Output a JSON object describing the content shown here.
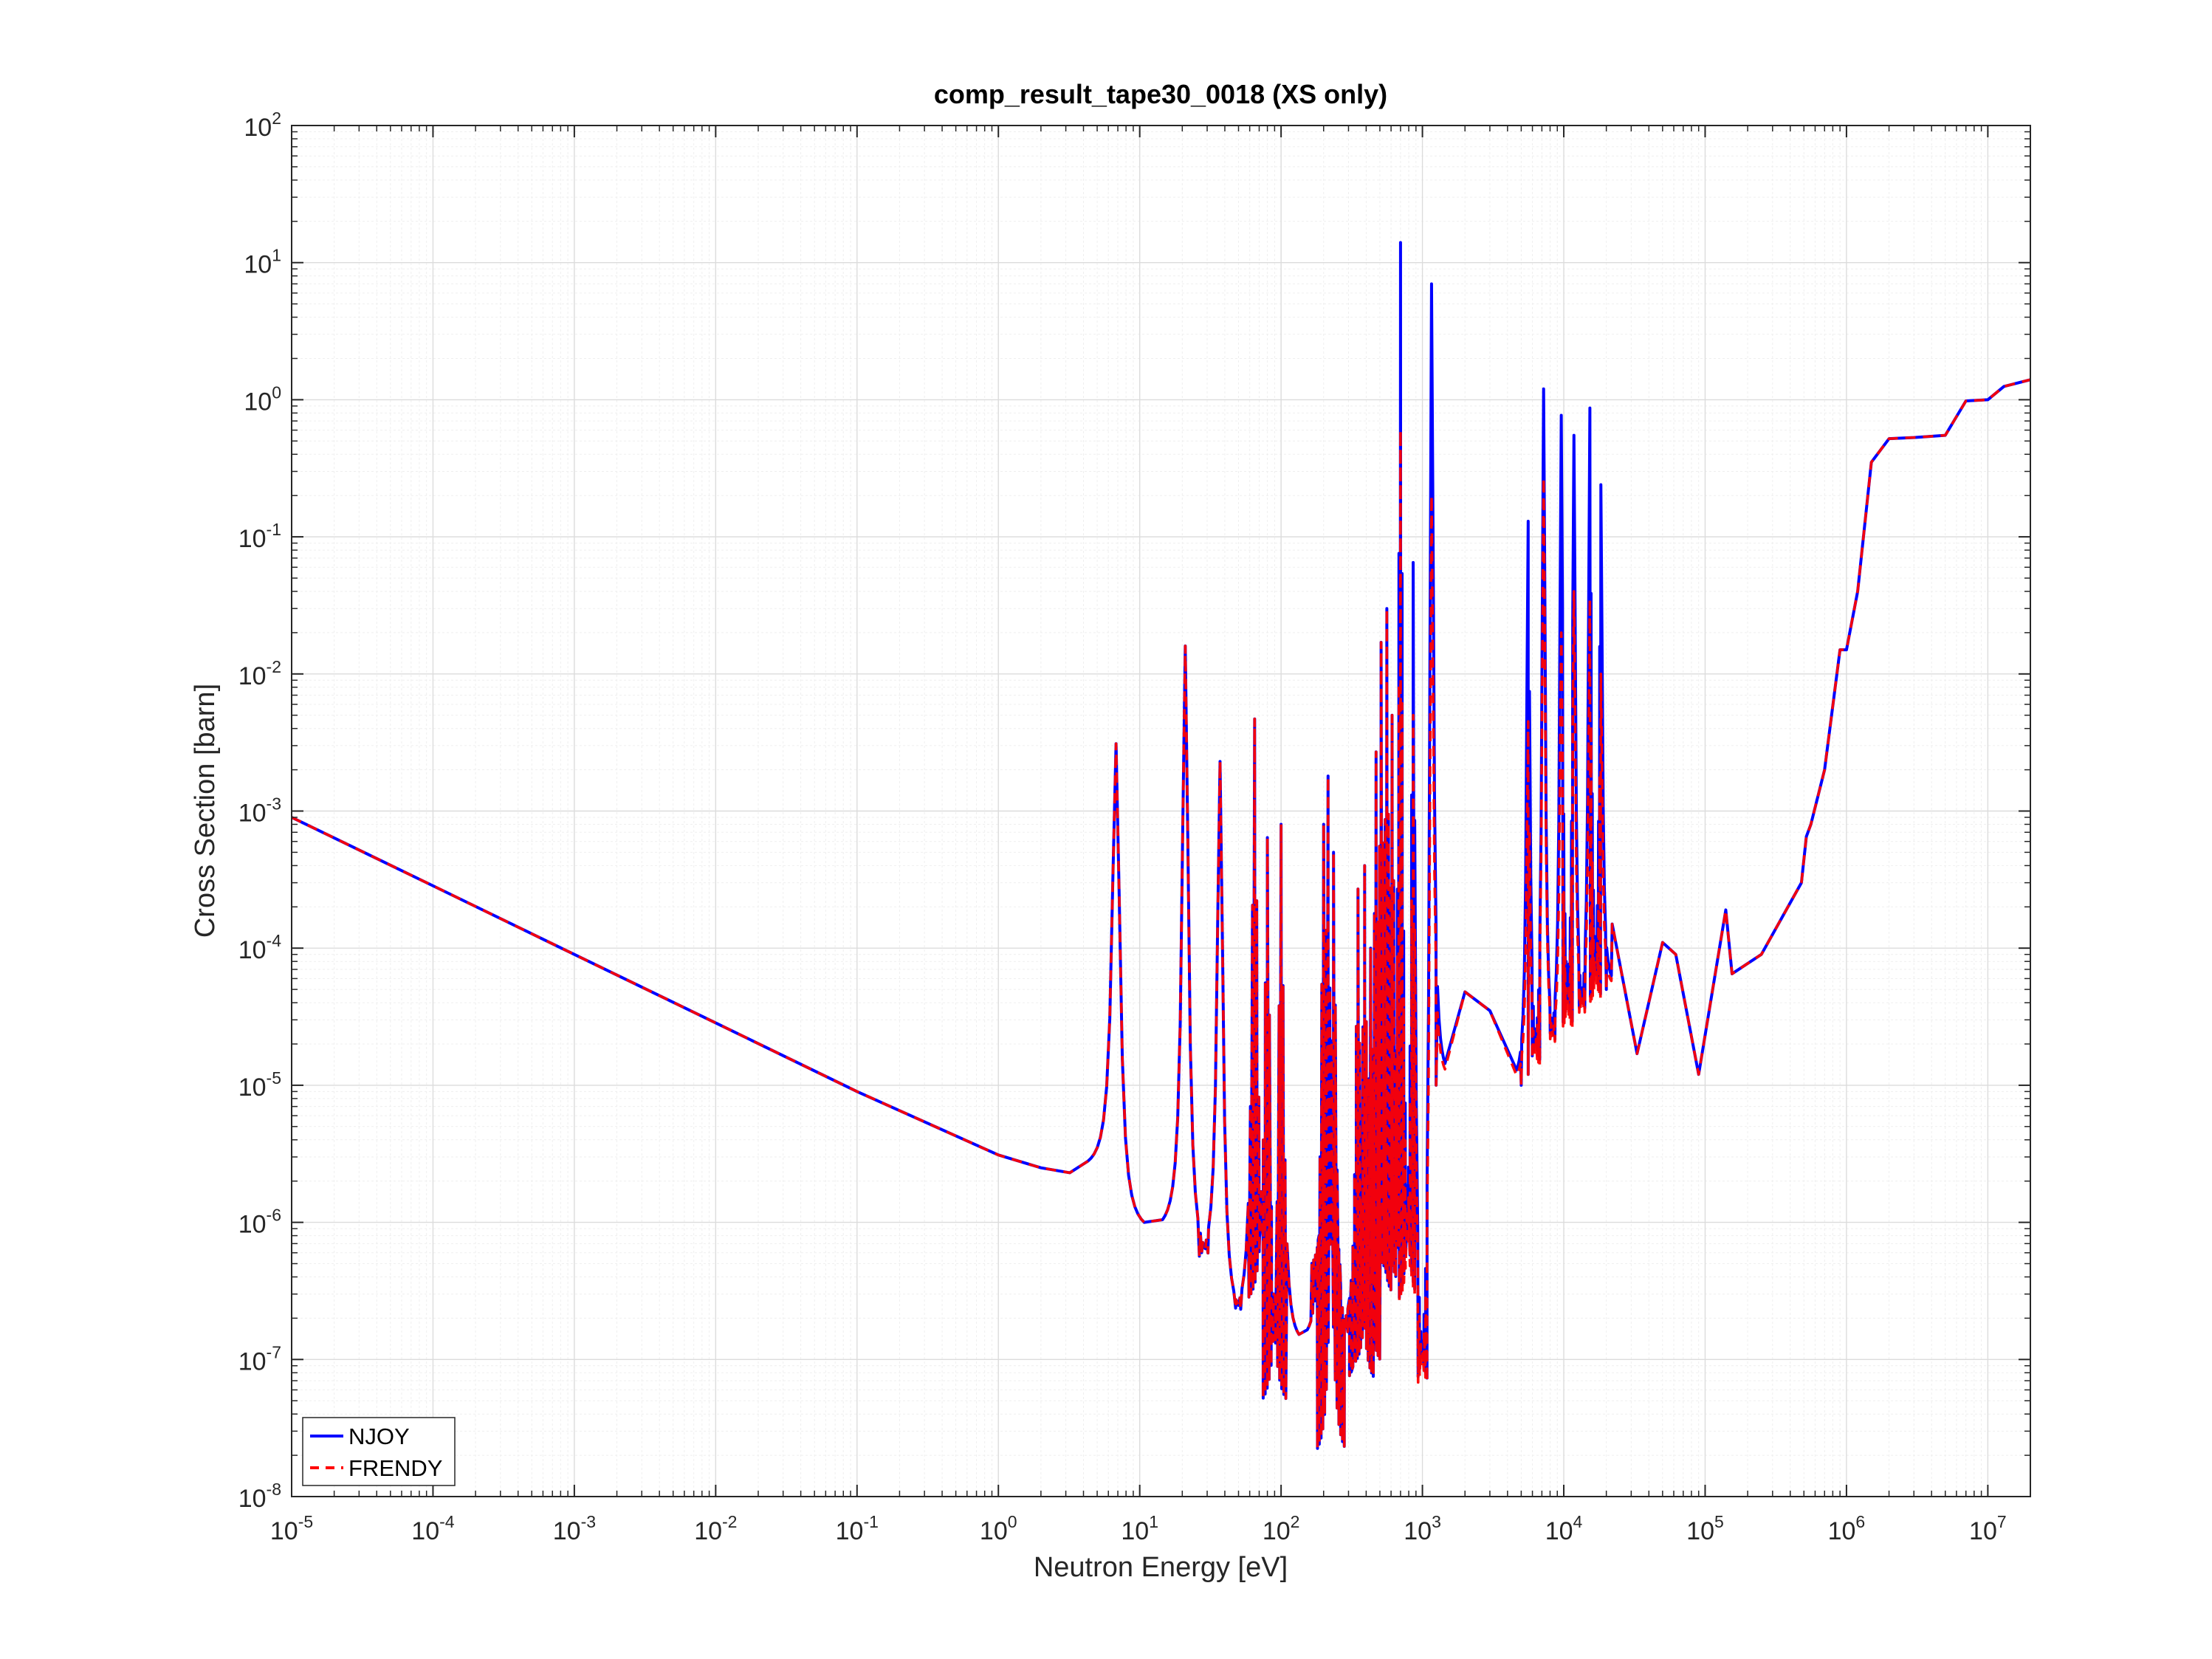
{
  "chart_data": {
    "type": "line",
    "title": "comp_result_tape30_0018 (XS only)",
    "xlabel": "Neutron Energy [eV]",
    "ylabel": "Cross Section [barn]",
    "xscale": "log",
    "yscale": "log",
    "xlim": [
      1e-05,
      20000000.0
    ],
    "ylim": [
      1e-08,
      100
    ],
    "x_ticks": [
      {
        "base": "10",
        "exp": "-5"
      },
      {
        "base": "10",
        "exp": "-4"
      },
      {
        "base": "10",
        "exp": "-3"
      },
      {
        "base": "10",
        "exp": "-2"
      },
      {
        "base": "10",
        "exp": "-1"
      },
      {
        "base": "10",
        "exp": "0"
      },
      {
        "base": "10",
        "exp": "1"
      },
      {
        "base": "10",
        "exp": "2"
      },
      {
        "base": "10",
        "exp": "3"
      },
      {
        "base": "10",
        "exp": "4"
      },
      {
        "base": "10",
        "exp": "5"
      },
      {
        "base": "10",
        "exp": "6"
      },
      {
        "base": "10",
        "exp": "7"
      }
    ],
    "y_ticks": [
      {
        "base": "10",
        "exp": "-8"
      },
      {
        "base": "10",
        "exp": "-7"
      },
      {
        "base": "10",
        "exp": "-6"
      },
      {
        "base": "10",
        "exp": "-5"
      },
      {
        "base": "10",
        "exp": "-4"
      },
      {
        "base": "10",
        "exp": "-3"
      },
      {
        "base": "10",
        "exp": "-2"
      },
      {
        "base": "10",
        "exp": "-1"
      },
      {
        "base": "10",
        "exp": "0"
      },
      {
        "base": "10",
        "exp": "1"
      },
      {
        "base": "10",
        "exp": "2"
      }
    ],
    "grid": true,
    "minor_grid": true,
    "legend_position": "bottom-left",
    "series": [
      {
        "name": "NJOY",
        "color": "#0000ff",
        "style": "solid",
        "background_1overv": {
          "x": [
            1e-05,
            0.0001,
            0.001,
            0.01,
            0.1,
            1.0,
            2.0,
            3.2
          ],
          "y": [
            0.0009,
            0.000285,
            9e-05,
            2.85e-05,
            9e-06,
            3.1e-06,
            2.5e-06,
            2.3e-06
          ]
        },
        "resolved_resonances": [
          {
            "e": 6.8,
            "peak": 0.0031,
            "left_min": 2.3e-06,
            "right_min": 8e-07
          },
          {
            "e": 21,
            "peak": 0.016,
            "left_min": 8e-07,
            "right_min": 4.5e-07
          },
          {
            "e": 37,
            "peak": 0.0023,
            "left_min": 4.5e-07,
            "right_min": 1.8e-07
          },
          {
            "e": 65,
            "peak": 0.0047,
            "left_min": 1.8e-07,
            "right_min": 2.3e-07
          },
          {
            "e": 80,
            "peak": 0.00064,
            "left_min": 2.3e-07,
            "right_min": 4e-08
          },
          {
            "e": 100,
            "peak": 0.0008,
            "left_min": 4e-08,
            "right_min": 1.2e-07
          },
          {
            "e": 200,
            "peak": 0.0008,
            "left_min": 1.3e-07,
            "right_min": 4e-07
          },
          {
            "e": 215,
            "peak": 0.0018,
            "left_min": 4e-07,
            "right_min": 1.7e-08
          },
          {
            "e": 235,
            "peak": 0.0005,
            "left_min": 1.7e-08,
            "right_min": 1.2e-07
          },
          {
            "e": 350,
            "peak": 0.00027,
            "left_min": 1.5e-07,
            "right_min": 6e-08
          },
          {
            "e": 390,
            "peak": 0.0004,
            "left_min": 6e-08,
            "right_min": 8e-08
          },
          {
            "e": 430,
            "peak": 0.0001,
            "left_min": 8e-08,
            "right_min": 4e-07
          },
          {
            "e": 470,
            "peak": 0.0027,
            "left_min": 4e-07,
            "right_min": 2.5e-07
          },
          {
            "e": 510,
            "peak": 0.017,
            "left_min": 2.5e-07,
            "right_min": 3e-07
          },
          {
            "e": 560,
            "peak": 0.03,
            "left_min": 3e-07,
            "right_min": 4e-07
          },
          {
            "e": 610,
            "peak": 0.005,
            "left_min": 4e-07,
            "right_min": 6e-07
          },
          {
            "e": 700,
            "peak": 14,
            "left_min": 6e-07,
            "right_min": 2e-07
          },
          {
            "e": 860,
            "peak": 0.065,
            "left_min": 2e-07,
            "right_min": 5e-08
          },
          {
            "e": 1160,
            "peak": 7,
            "left_min": 4.5e-08,
            "right_min": 1e-05
          },
          {
            "e": 5600,
            "peak": 0.13,
            "left_min": 1e-05,
            "right_min": 1.2e-05
          },
          {
            "e": 7200,
            "peak": 1.2,
            "left_min": 1.2e-05,
            "right_min": 1.6e-05
          },
          {
            "e": 9600,
            "peak": 0.77,
            "left_min": 1.8e-05,
            "right_min": 2.2e-05
          },
          {
            "e": 11800,
            "peak": 0.55,
            "left_min": 2.2e-05,
            "right_min": 2.8e-05
          },
          {
            "e": 15300,
            "peak": 0.87,
            "left_min": 2.8e-05,
            "right_min": 3.5e-05
          },
          {
            "e": 18300,
            "peak": 0.24,
            "left_min": 3.5e-05,
            "right_min": 5e-05
          }
        ],
        "smooth_region": {
          "x": [
            1250,
            2000,
            3000,
            5000,
            5600,
            20000,
            22000,
            33000,
            50000,
            62000,
            90000,
            140000,
            155000,
            250000,
            480000,
            520000,
            560000,
            700000,
            900000,
            1000000.0,
            1200000.0,
            1500000.0,
            2000000.0,
            3000000.0,
            5000000.0,
            7000000.0,
            10000000.0,
            13000000.0,
            20000000.0
          ],
          "y": [
            1e-05,
            4.8e-05,
            3.5e-05,
            1e-05,
            1.2e-05,
            5e-05,
            0.00015,
            1.7e-05,
            0.00011,
            9e-05,
            1.2e-05,
            0.00019,
            6.5e-05,
            9e-05,
            0.0003,
            0.00065,
            0.0008,
            0.002,
            0.015,
            0.015,
            0.04,
            0.35,
            0.52,
            0.53,
            0.55,
            0.98,
            1.0,
            1.25,
            1.4
          ]
        }
      },
      {
        "name": "FRENDY",
        "color": "#ff0000",
        "style": "dashed",
        "background_1overv": {
          "x": [
            1e-05,
            0.0001,
            0.001,
            0.01,
            0.1,
            1.0,
            2.0,
            3.2
          ],
          "y": [
            0.0009,
            0.000285,
            9e-05,
            2.85e-05,
            9e-06,
            3.1e-06,
            2.5e-06,
            2.3e-06
          ]
        },
        "resolved_resonances": [
          {
            "e": 6.8,
            "peak": 0.0031,
            "left_min": 2.3e-06,
            "right_min": 8e-07
          },
          {
            "e": 21,
            "peak": 0.016,
            "left_min": 8e-07,
            "right_min": 4.5e-07
          },
          {
            "e": 37,
            "peak": 0.0023,
            "left_min": 4.5e-07,
            "right_min": 1.8e-07
          },
          {
            "e": 65,
            "peak": 0.0047,
            "left_min": 1.8e-07,
            "right_min": 2.3e-07
          },
          {
            "e": 80,
            "peak": 0.00064,
            "left_min": 2.3e-07,
            "right_min": 4e-08
          },
          {
            "e": 100,
            "peak": 0.0008,
            "left_min": 4e-08,
            "right_min": 1.2e-07
          },
          {
            "e": 200,
            "peak": 0.0008,
            "left_min": 1.3e-07,
            "right_min": 4e-07
          },
          {
            "e": 215,
            "peak": 0.0018,
            "left_min": 4e-07,
            "right_min": 1.7e-08
          },
          {
            "e": 235,
            "peak": 0.0005,
            "left_min": 1.7e-08,
            "right_min": 1.2e-07
          },
          {
            "e": 350,
            "peak": 0.00027,
            "left_min": 1.5e-07,
            "right_min": 6e-08
          },
          {
            "e": 390,
            "peak": 0.0004,
            "left_min": 6e-08,
            "right_min": 8e-08
          },
          {
            "e": 430,
            "peak": 0.0001,
            "left_min": 8e-08,
            "right_min": 4e-07
          },
          {
            "e": 470,
            "peak": 0.0027,
            "left_min": 4e-07,
            "right_min": 2.5e-07
          },
          {
            "e": 510,
            "peak": 0.017,
            "left_min": 2.5e-07,
            "right_min": 3e-07
          },
          {
            "e": 560,
            "peak": 0.03,
            "left_min": 3e-07,
            "right_min": 4e-07
          },
          {
            "e": 610,
            "peak": 0.005,
            "left_min": 4e-07,
            "right_min": 6e-07
          },
          {
            "e": 700,
            "peak": 0.6,
            "left_min": 6e-07,
            "right_min": 2e-07
          },
          {
            "e": 860,
            "peak": 0.005,
            "left_min": 2e-07,
            "right_min": 5e-08
          },
          {
            "e": 1160,
            "peak": 0.2,
            "left_min": 4.5e-08,
            "right_min": 1e-05
          },
          {
            "e": 5600,
            "peak": 0.0045,
            "left_min": 1e-05,
            "right_min": 1.2e-05
          },
          {
            "e": 7200,
            "peak": 0.27,
            "left_min": 1.2e-05,
            "right_min": 1.6e-05
          },
          {
            "e": 9600,
            "peak": 0.02,
            "left_min": 1.8e-05,
            "right_min": 2.2e-05
          },
          {
            "e": 11800,
            "peak": 0.04,
            "left_min": 2.2e-05,
            "right_min": 2.8e-05
          },
          {
            "e": 15300,
            "peak": 0.035,
            "left_min": 2.8e-05,
            "right_min": 3.5e-05
          },
          {
            "e": 18300,
            "peak": 0.01,
            "left_min": 3.5e-05,
            "right_min": 5e-05
          }
        ],
        "smooth_region": {
          "x": [
            1250,
            2000,
            3000,
            5000,
            5600,
            20000,
            22000,
            33000,
            50000,
            62000,
            90000,
            140000,
            155000,
            250000,
            480000,
            520000,
            560000,
            700000,
            900000,
            1000000.0,
            1200000.0,
            1500000.0,
            2000000.0,
            3000000.0,
            5000000.0,
            7000000.0,
            10000000.0,
            13000000.0,
            20000000.0
          ],
          "y": [
            1e-05,
            4.8e-05,
            3.5e-05,
            1e-05,
            1.2e-05,
            5e-05,
            0.00015,
            1.7e-05,
            0.00011,
            9e-05,
            1.2e-05,
            0.00019,
            6.5e-05,
            9e-05,
            0.0003,
            0.00065,
            0.0008,
            0.002,
            0.015,
            0.015,
            0.04,
            0.35,
            0.52,
            0.53,
            0.55,
            0.98,
            1.0,
            1.25,
            1.4
          ]
        }
      }
    ]
  }
}
